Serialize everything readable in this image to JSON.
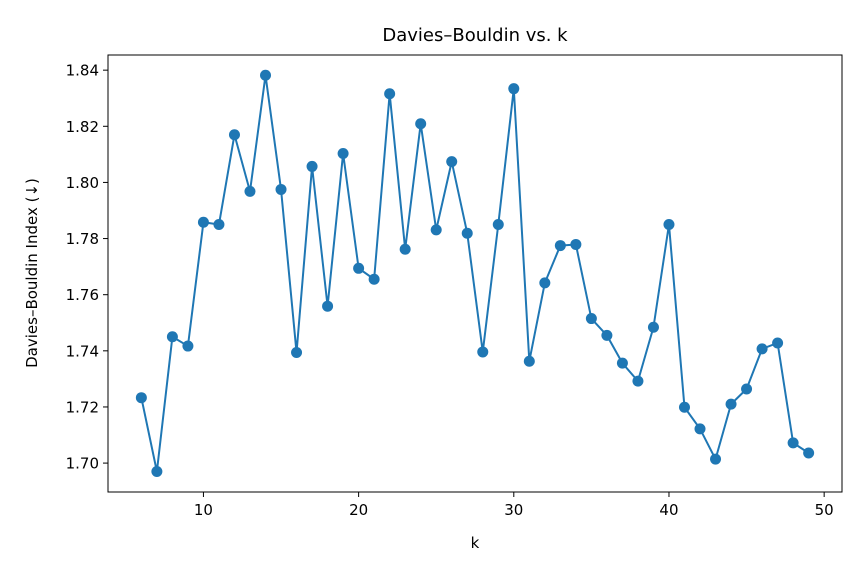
{
  "chart_data": {
    "type": "line",
    "title": "Davies–Bouldin vs. k",
    "xlabel": "k",
    "ylabel": "Davies–Bouldin Index (↓)",
    "xlim": [
      3.85,
      51.15
    ],
    "ylim": [
      1.6897,
      1.8454
    ],
    "xticks": [
      10,
      20,
      30,
      40,
      50
    ],
    "yticks": [
      1.7,
      1.72,
      1.74,
      1.76,
      1.78,
      1.8,
      1.82,
      1.84
    ],
    "xtick_labels": [
      "10",
      "20",
      "30",
      "40",
      "50"
    ],
    "ytick_labels": [
      "1.70",
      "1.72",
      "1.74",
      "1.76",
      "1.78",
      "1.80",
      "1.82",
      "1.84"
    ],
    "grid": false,
    "color": "#1f77b4",
    "marker": "circle",
    "series": [
      {
        "x": [
          6,
          7,
          8,
          9,
          10,
          11,
          12,
          13,
          14,
          15,
          16,
          17,
          18,
          19,
          20,
          21,
          22,
          23,
          24,
          25,
          26,
          27,
          28,
          29,
          30,
          31,
          32,
          33,
          34,
          35,
          36,
          37,
          38,
          39,
          40,
          41,
          42,
          43,
          44,
          45,
          46,
          47,
          48,
          49
        ],
        "y": [
          1.7233,
          1.697,
          1.745,
          1.7417,
          1.7858,
          1.785,
          1.817,
          1.7968,
          1.8382,
          1.7975,
          1.7394,
          1.8057,
          1.7559,
          1.8103,
          1.7694,
          1.7655,
          1.8316,
          1.7762,
          1.8209,
          1.7831,
          1.8074,
          1.7819,
          1.7396,
          1.785,
          1.8334,
          1.7363,
          1.7642,
          1.7775,
          1.7779,
          1.7515,
          1.7455,
          1.7356,
          1.7292,
          1.7484,
          1.785,
          1.7199,
          1.7122,
          1.7014,
          1.721,
          1.7264,
          1.7407,
          1.7428,
          1.7072,
          1.7036
        ]
      }
    ]
  }
}
